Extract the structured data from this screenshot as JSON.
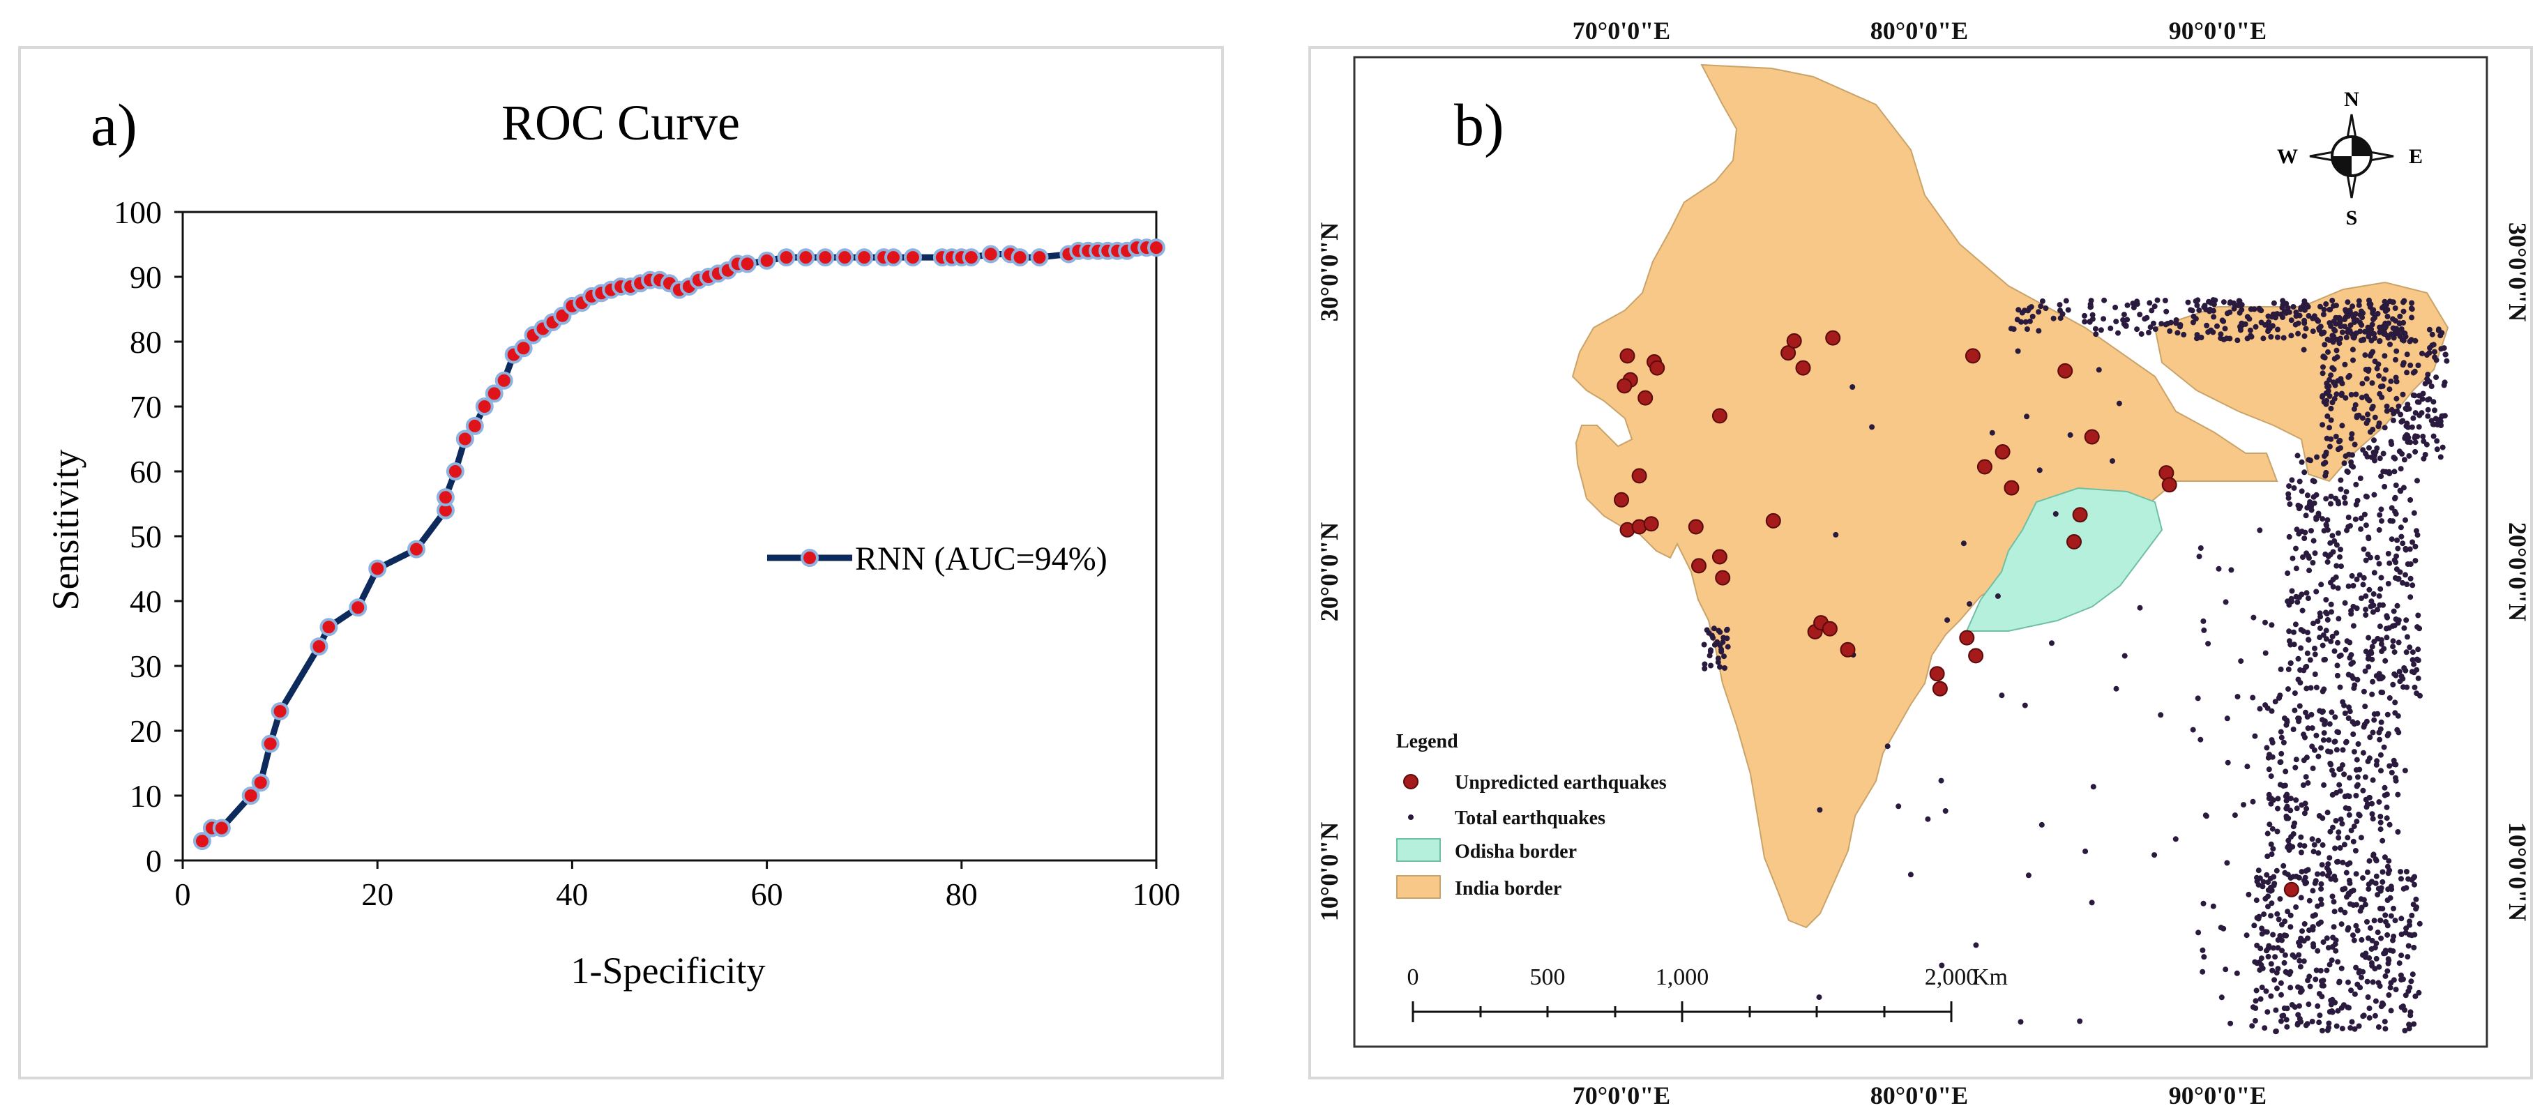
{
  "panel_a": {
    "label": "a)",
    "chart_data": {
      "type": "line",
      "title": "ROC Curve",
      "xlabel": "1-Specificity",
      "ylabel": "Sensitivity",
      "xlim": [
        0,
        100
      ],
      "ylim": [
        0,
        100
      ],
      "x_ticks": [
        "0",
        "20",
        "40",
        "60",
        "80",
        "100"
      ],
      "y_ticks": [
        "0",
        "10",
        "20",
        "30",
        "40",
        "50",
        "60",
        "70",
        "80",
        "90",
        "100"
      ],
      "legend_position": "right",
      "grid": false,
      "series": [
        {
          "name": "RNN (AUC=94%)",
          "line_color": "#0d2a5c",
          "marker_fill": "#e0131b",
          "marker_edge": "#8fb3e0",
          "x": [
            2,
            3,
            4,
            7,
            8,
            9,
            10,
            14,
            15,
            18,
            20,
            24,
            27,
            27,
            28,
            29,
            30,
            31,
            32,
            33,
            34,
            35,
            36,
            37,
            38,
            39,
            40,
            41,
            42,
            43,
            44,
            45,
            46,
            47,
            48,
            49,
            50,
            51,
            52,
            53,
            54,
            55,
            56,
            57,
            58,
            60,
            62,
            64,
            66,
            68,
            70,
            72,
            73,
            75,
            78,
            79,
            80,
            81,
            83,
            85,
            86,
            88,
            91,
            92,
            93,
            94,
            95,
            96,
            97,
            98,
            99,
            100
          ],
          "y": [
            3,
            5,
            5,
            10,
            12,
            18,
            23,
            33,
            36,
            39,
            45,
            48,
            54,
            56,
            60,
            65,
            67,
            70,
            72,
            74,
            78,
            79,
            81,
            82,
            83,
            84,
            85.5,
            86,
            87,
            87.5,
            88,
            88.5,
            88.5,
            89,
            89.5,
            89.5,
            89,
            88,
            88.5,
            89.5,
            90,
            90.5,
            91,
            92,
            92,
            92.5,
            93,
            93,
            93,
            93,
            93,
            93,
            93,
            93,
            93,
            93,
            93,
            93,
            93.5,
            93.5,
            93,
            93,
            93.5,
            94,
            94,
            94,
            94,
            94,
            94,
            94.5,
            94.5,
            94.5
          ]
        }
      ]
    }
  },
  "panel_b": {
    "label": "b)",
    "top_ticks": [
      "70°0'0\"E",
      "80°0'0\"E",
      "90°0'0\"E"
    ],
    "bottom_ticks": [
      "70°0'0\"E",
      "80°0'0\"E",
      "90°0'0\"E"
    ],
    "left_ticks": [
      "30°0'0\"N",
      "20°0'0\"N",
      "10°0'0\"N"
    ],
    "right_ticks": [
      "30°0'0\"N",
      "20°0'0\"N",
      "10°0'0\"N"
    ],
    "compass": {
      "n": "N",
      "s": "S",
      "e": "E",
      "w": "W"
    },
    "legend": {
      "title": "Legend",
      "items": [
        {
          "label": "Unpredicted earthquakes",
          "color": "#a51a1a"
        },
        {
          "label": "Total earthquakes",
          "color": "#2a1a3d"
        },
        {
          "label": "Odisha border",
          "color": "#b5f0dc"
        },
        {
          "label": "India border",
          "color": "#f7c887"
        }
      ]
    },
    "scale_bar": {
      "labels": [
        "0",
        "500",
        "1,000",
        "2,000"
      ],
      "unit": "Km"
    },
    "colors": {
      "india": "#f7c887",
      "odisha": "#b5f0dc",
      "total_eq": "#2a1a3d",
      "unpredicted_eq": "#a51a1a"
    },
    "unpredicted_earthquakes": [
      {
        "lon": 70.2,
        "lat": 27.2
      },
      {
        "lon": 70.3,
        "lat": 26.4
      },
      {
        "lon": 70.1,
        "lat": 26.2
      },
      {
        "lon": 71.1,
        "lat": 27.0
      },
      {
        "lon": 71.2,
        "lat": 26.8
      },
      {
        "lon": 70.8,
        "lat": 25.8
      },
      {
        "lon": 70.6,
        "lat": 23.2
      },
      {
        "lon": 70.0,
        "lat": 22.4
      },
      {
        "lon": 70.2,
        "lat": 21.4
      },
      {
        "lon": 70.6,
        "lat": 21.5
      },
      {
        "lon": 71.0,
        "lat": 21.6
      },
      {
        "lon": 73.3,
        "lat": 25.2
      },
      {
        "lon": 75.6,
        "lat": 27.3
      },
      {
        "lon": 75.8,
        "lat": 27.7
      },
      {
        "lon": 76.1,
        "lat": 26.8
      },
      {
        "lon": 77.1,
        "lat": 27.8
      },
      {
        "lon": 81.8,
        "lat": 27.2
      },
      {
        "lon": 84.9,
        "lat": 26.7
      },
      {
        "lon": 85.8,
        "lat": 24.5
      },
      {
        "lon": 82.8,
        "lat": 24.0
      },
      {
        "lon": 82.2,
        "lat": 23.5
      },
      {
        "lon": 83.1,
        "lat": 22.8
      },
      {
        "lon": 88.3,
        "lat": 23.3
      },
      {
        "lon": 88.4,
        "lat": 22.9
      },
      {
        "lon": 85.4,
        "lat": 21.9
      },
      {
        "lon": 85.2,
        "lat": 21.0
      },
      {
        "lon": 72.5,
        "lat": 21.5
      },
      {
        "lon": 72.6,
        "lat": 20.2
      },
      {
        "lon": 73.3,
        "lat": 20.5
      },
      {
        "lon": 73.4,
        "lat": 19.8
      },
      {
        "lon": 75.1,
        "lat": 21.7
      },
      {
        "lon": 76.5,
        "lat": 18.0
      },
      {
        "lon": 76.7,
        "lat": 18.3
      },
      {
        "lon": 77.0,
        "lat": 18.1
      },
      {
        "lon": 77.6,
        "lat": 17.4
      },
      {
        "lon": 80.6,
        "lat": 16.6
      },
      {
        "lon": 80.7,
        "lat": 16.1
      },
      {
        "lon": 81.6,
        "lat": 17.8
      },
      {
        "lon": 81.9,
        "lat": 17.2
      },
      {
        "lon": 92.5,
        "lat": 9.4
      }
    ]
  }
}
